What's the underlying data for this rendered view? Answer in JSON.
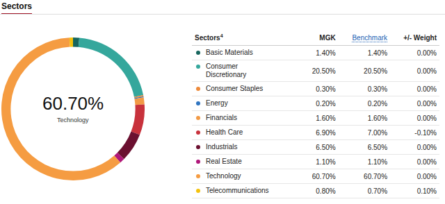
{
  "header": {
    "title": "Sectors"
  },
  "chart_data": {
    "type": "pie",
    "categories": [
      "Basic Materials",
      "Consumer Discretionary",
      "Consumer Staples",
      "Energy",
      "Financials",
      "Health Care",
      "Industrials",
      "Real Estate",
      "Technology",
      "Telecommunications"
    ],
    "values": [
      1.4,
      20.5,
      0.3,
      0.2,
      1.6,
      6.9,
      6.5,
      1.1,
      60.7,
      0.8
    ],
    "colors": [
      "#17665e",
      "#35a79c",
      "#ee8a3a",
      "#2f74c0",
      "#f29a46",
      "#c8323c",
      "#6b1030",
      "#b0177a",
      "#f59c42",
      "#f4c20d"
    ],
    "annotations": [
      "60.70%",
      "Technology"
    ],
    "data_labels": false
  },
  "table": {
    "columns": [
      {
        "label": "Sectors",
        "note": "4"
      },
      {
        "label": "MGK"
      },
      {
        "label": "Benchmark"
      },
      {
        "label": "+/- Weight"
      }
    ],
    "rows": [
      [
        "Basic Materials",
        "1.40%",
        "1.40%",
        "0.00%"
      ],
      [
        "Consumer Discretionary",
        "20.50%",
        "20.50%",
        "0.00%"
      ],
      [
        "Consumer Staples",
        "0.30%",
        "0.30%",
        "0.00%"
      ],
      [
        "Energy",
        "0.20%",
        "0.20%",
        "0.00%"
      ],
      [
        "Financials",
        "1.60%",
        "1.60%",
        "0.00%"
      ],
      [
        "Health Care",
        "6.90%",
        "7.00%",
        "-0.10%"
      ],
      [
        "Industrials",
        "6.50%",
        "6.50%",
        "0.00%"
      ],
      [
        "Real Estate",
        "1.10%",
        "1.10%",
        "0.00%"
      ],
      [
        "Technology",
        "60.70%",
        "60.70%",
        "0.00%"
      ],
      [
        "Telecommunications",
        "0.80%",
        "0.70%",
        "0.10%"
      ]
    ]
  }
}
